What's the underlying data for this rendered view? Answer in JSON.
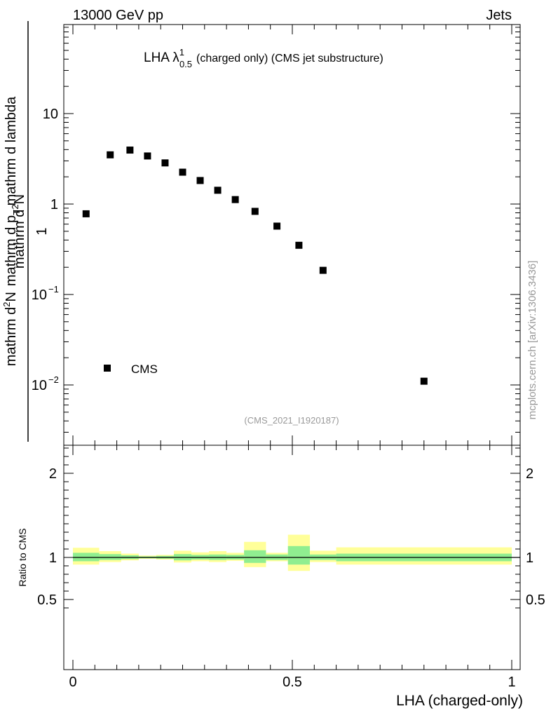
{
  "header": {
    "left": "13000 GeV pp",
    "right": "Jets"
  },
  "title": {
    "main": "LHA λ",
    "sup": "1",
    "sub": "0.5",
    "rest": "(charged only) (CMS jet substructure)"
  },
  "watermark": "mcplots.cern.ch [arXiv:1306.3436]",
  "analysis_tag": "(CMS_2021_I1920187)",
  "y_label": {
    "numerator": "1",
    "denominator": "mathrm d N / mathrm d p",
    "denominator_sub": "T",
    "denominator_rest": "mathrm d p",
    "denominator_sub2": "T",
    "top_numerator": "mathrm d",
    "top_sup": "2",
    "top_N": "N",
    "top_denominator": "mathrm d p",
    "top_sub": "T",
    "top_rest": " mathrm d lambda"
  },
  "ratio_ylabel": "Ratio to CMS",
  "xlabel": "LHA (charged-only)",
  "legend": {
    "label": "CMS",
    "color": "#000000"
  },
  "colors": {
    "band_inner": "#90ee90",
    "band_outer": "#ffff99",
    "marker": "#000000"
  },
  "chart_data": [
    {
      "type": "scatter",
      "panel": "main",
      "yscale": "log",
      "ylim": [
        0.0025,
        100
      ],
      "xlim": [
        -0.02,
        1.02
      ],
      "y_ticks": [
        {
          "value": 0.01,
          "base": "10",
          "exp": "−2"
        },
        {
          "value": 0.1,
          "base": "10",
          "exp": "−1"
        },
        {
          "value": 1,
          "label": "1"
        },
        {
          "value": 10,
          "label": "10"
        }
      ],
      "series": [
        {
          "name": "CMS",
          "x": [
            0.03,
            0.085,
            0.13,
            0.17,
            0.21,
            0.25,
            0.29,
            0.33,
            0.37,
            0.415,
            0.465,
            0.515,
            0.57,
            0.8
          ],
          "y": [
            0.78,
            3.5,
            3.95,
            3.4,
            2.85,
            2.25,
            1.82,
            1.42,
            1.12,
            0.83,
            0.57,
            0.35,
            0.185,
            0.011
          ]
        }
      ]
    },
    {
      "type": "area",
      "panel": "ratio",
      "ylim": [
        0.35,
        2.4
      ],
      "xlim": [
        -0.02,
        1.02
      ],
      "y_ticks": [
        0.5,
        1,
        2
      ],
      "x_ticks": [
        0,
        0.5,
        1
      ],
      "x_tick_labels": [
        "0",
        "0.5",
        "1"
      ],
      "bins": [
        {
          "x0": 0.0,
          "x1": 0.06,
          "inner": [
            0.955,
            1.055
          ],
          "outer": [
            0.915,
            1.115
          ]
        },
        {
          "x0": 0.06,
          "x1": 0.11,
          "inner": [
            0.97,
            1.04
          ],
          "outer": [
            0.945,
            1.075
          ]
        },
        {
          "x0": 0.11,
          "x1": 0.15,
          "inner": [
            0.98,
            1.025
          ],
          "outer": [
            0.965,
            1.045
          ]
        },
        {
          "x0": 0.15,
          "x1": 0.19,
          "inner": [
            0.99,
            1.012
          ],
          "outer": [
            0.983,
            1.022
          ]
        },
        {
          "x0": 0.19,
          "x1": 0.23,
          "inner": [
            0.985,
            1.018
          ],
          "outer": [
            0.975,
            1.03
          ]
        },
        {
          "x0": 0.23,
          "x1": 0.27,
          "inner": [
            0.965,
            1.04
          ],
          "outer": [
            0.94,
            1.08
          ]
        },
        {
          "x0": 0.27,
          "x1": 0.31,
          "inner": [
            0.975,
            1.03
          ],
          "outer": [
            0.955,
            1.06
          ]
        },
        {
          "x0": 0.31,
          "x1": 0.35,
          "inner": [
            0.97,
            1.035
          ],
          "outer": [
            0.945,
            1.075
          ]
        },
        {
          "x0": 0.35,
          "x1": 0.39,
          "inner": [
            0.975,
            1.03
          ],
          "outer": [
            0.96,
            1.055
          ]
        },
        {
          "x0": 0.39,
          "x1": 0.44,
          "inner": [
            0.935,
            1.085
          ],
          "outer": [
            0.885,
            1.185
          ]
        },
        {
          "x0": 0.44,
          "x1": 0.49,
          "inner": [
            0.97,
            1.035
          ],
          "outer": [
            0.955,
            1.055
          ]
        },
        {
          "x0": 0.49,
          "x1": 0.54,
          "inner": [
            0.915,
            1.135
          ],
          "outer": [
            0.84,
            1.27
          ]
        },
        {
          "x0": 0.54,
          "x1": 0.6,
          "inner": [
            0.97,
            1.035
          ],
          "outer": [
            0.945,
            1.08
          ]
        },
        {
          "x0": 0.6,
          "x1": 1.0,
          "inner": [
            0.955,
            1.045
          ],
          "outer": [
            0.915,
            1.12
          ]
        }
      ]
    }
  ]
}
